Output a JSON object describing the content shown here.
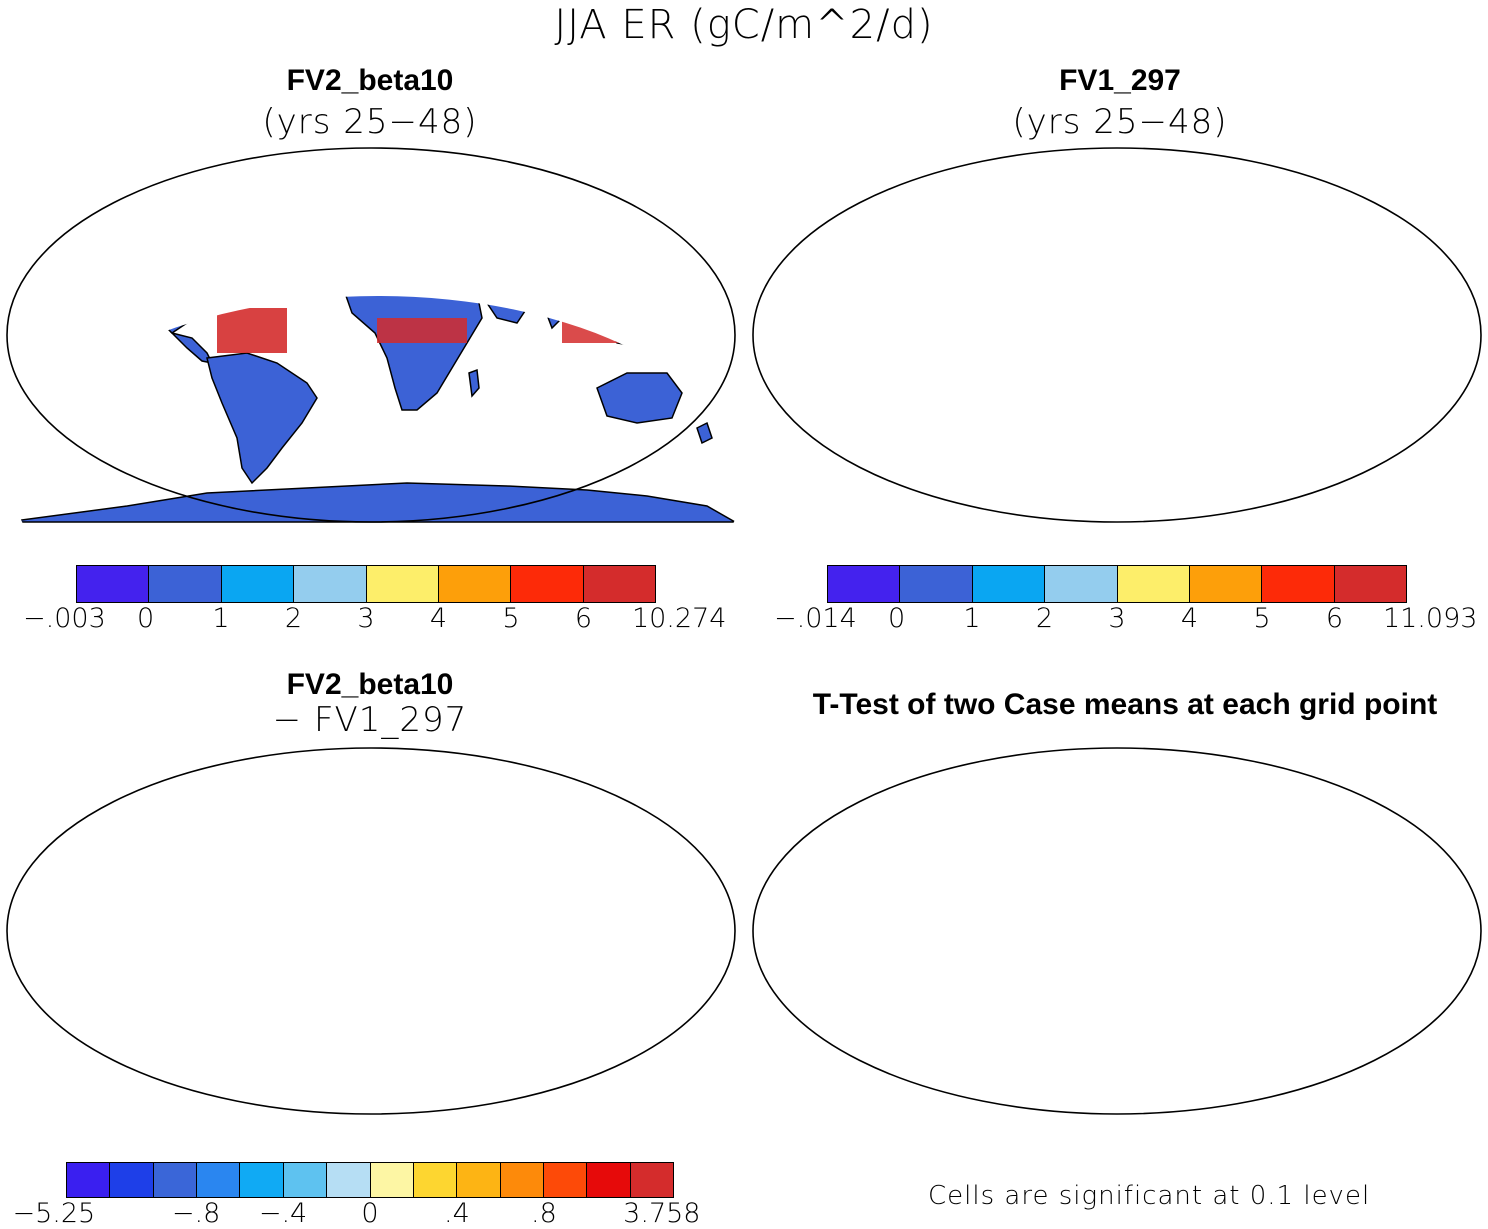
{
  "figure_title": "JJA ER (gC/m^2/d)",
  "panels": {
    "top_left": {
      "title": "FV2_beta10",
      "subtitle": "(yrs 25−48)"
    },
    "top_right": {
      "title": "FV1_297",
      "subtitle": "(yrs 25−48)"
    },
    "bottom_left": {
      "title": "FV2_beta10",
      "subtitle": "− FV1_297"
    },
    "bottom_right": {
      "title": "T-Test of two Case means at each grid point",
      "note": "Cells are significant at 0.1 level"
    }
  },
  "colorbars": {
    "top_left": {
      "colors": [
        "#4422ee",
        "#3c62d6",
        "#0aa6f2",
        "#94cdee",
        "#fdee6a",
        "#fd9f0a",
        "#fd2a08",
        "#d42c2c"
      ],
      "ticks": [
        "−.003",
        "0",
        "1",
        "2",
        "3",
        "4",
        "5",
        "6",
        "10.274"
      ]
    },
    "top_right": {
      "colors": [
        "#4422ee",
        "#3c62d6",
        "#0aa6f2",
        "#94cdee",
        "#fdee6a",
        "#fd9f0a",
        "#fd2a08",
        "#d42c2c"
      ],
      "ticks": [
        "−.014",
        "0",
        "1",
        "2",
        "3",
        "4",
        "5",
        "6",
        "11.093"
      ]
    },
    "bottom_left": {
      "colors": [
        "#3a1ff0",
        "#1e3fe8",
        "#3a66d8",
        "#2a86f0",
        "#10aaf4",
        "#5ec2f0",
        "#b6def4",
        "#fdf6a4",
        "#fdd630",
        "#fdb414",
        "#fd8a0a",
        "#fd4a08",
        "#e60a0a",
        "#d42c2c"
      ],
      "ticks": [
        "−5.25",
        "−.8",
        "−.4",
        "0",
        ".4",
        ".8",
        "3.758"
      ]
    }
  },
  "legend_colors": {
    "significant": "#ff0000",
    "land_outline": "#000000"
  }
}
